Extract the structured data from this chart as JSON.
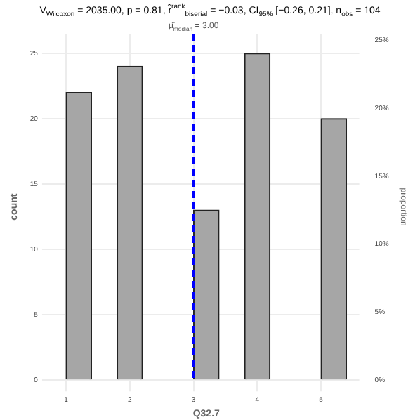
{
  "chart_data": {
    "type": "histogram",
    "title": "V$_{Wilcoxon}$ = 2035.00, p = 0.81, r̂$^{rank}$$_{biserial}$ = −0.03, CI$_{95%}$ [−0.26, 0.21], n$_{obs}$ = 104",
    "bins": [
      1,
      1.4,
      1.8,
      2.2,
      2.6,
      3.0,
      3.4,
      3.8,
      4.2,
      4.6,
      5.0,
      5.4
    ],
    "values": [
      22,
      0,
      24,
      0,
      0,
      13,
      0,
      25,
      0,
      0,
      20
    ],
    "color": "#a6a6a6",
    "xlabel": "Q32.7",
    "ylabel": "count",
    "y2label": "proportion",
    "xlim": [
      0.8,
      5.6
    ],
    "xticks": [
      1,
      2,
      3,
      4,
      5
    ],
    "ylim": [
      0,
      26.5
    ],
    "yticks": [
      0,
      5,
      10,
      15,
      20,
      25
    ],
    "y2lim": [
      0,
      25.48
    ],
    "y2ticks": [
      {
        "value": 0,
        "label": "0%"
      },
      {
        "value": 5,
        "label": "5%"
      },
      {
        "value": 10,
        "label": "10%"
      },
      {
        "value": 15,
        "label": "15%"
      },
      {
        "value": 20,
        "label": "20%"
      },
      {
        "value": 25,
        "label": "25%"
      }
    ],
    "ref_lines": [
      {
        "axis": "x",
        "value": 3.0,
        "label": "μ̂$_{median}$ = 3.00",
        "color": "#0000ff",
        "line_style": "dashed"
      }
    ],
    "grid": true
  }
}
